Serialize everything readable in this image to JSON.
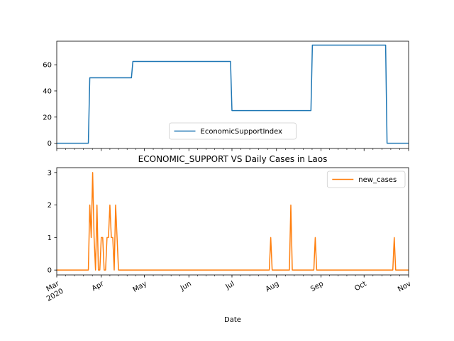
{
  "chart_data": [
    {
      "type": "line",
      "title": "",
      "xlabel": "",
      "ylabel": "",
      "x_range": [
        "2020-03-01",
        "2020-11-01"
      ],
      "ylim": [
        -4,
        78
      ],
      "yticks": [
        0,
        20,
        40,
        60
      ],
      "grid": false,
      "legend_position": "lower center",
      "series": [
        {
          "name": "EconomicSupportIndex",
          "color": "#1f77b4",
          "x": [
            "2020-03-01",
            "2020-03-23",
            "2020-03-24",
            "2020-04-22",
            "2020-04-23",
            "2020-06-30",
            "2020-07-01",
            "2020-08-25",
            "2020-08-26",
            "2020-10-16",
            "2020-10-17",
            "2020-11-01"
          ],
          "values": [
            0,
            0,
            50,
            50,
            62.5,
            62.5,
            25,
            25,
            75,
            75,
            0,
            0
          ]
        }
      ]
    },
    {
      "type": "line",
      "title": "ECONOMIC_SUPPORT VS Daily Cases in Laos",
      "xlabel": "Date",
      "ylabel": "",
      "x_range": [
        "2020-03-01",
        "2020-11-01"
      ],
      "xtick_labels": [
        "Mar\n2020",
        "Apr",
        "May",
        "Jun",
        "Jul",
        "Aug",
        "Sep",
        "Oct",
        "Nov"
      ],
      "ylim": [
        -0.15,
        3.15
      ],
      "yticks": [
        0,
        1,
        2,
        3
      ],
      "grid": false,
      "legend_position": "upper right",
      "series": [
        {
          "name": "new_cases",
          "color": "#ff7f0e",
          "x": [
            "2020-03-01",
            "2020-03-23",
            "2020-03-24",
            "2020-03-25",
            "2020-03-26",
            "2020-03-27",
            "2020-03-28",
            "2020-03-29",
            "2020-03-30",
            "2020-03-31",
            "2020-04-01",
            "2020-04-02",
            "2020-04-03",
            "2020-04-04",
            "2020-04-05",
            "2020-04-06",
            "2020-04-07",
            "2020-04-08",
            "2020-04-09",
            "2020-04-10",
            "2020-04-11",
            "2020-04-12",
            "2020-04-13",
            "2020-04-14",
            "2020-07-27",
            "2020-07-28",
            "2020-07-29",
            "2020-08-10",
            "2020-08-11",
            "2020-08-12",
            "2020-08-27",
            "2020-08-28",
            "2020-08-29",
            "2020-10-21",
            "2020-10-22",
            "2020-10-23",
            "2020-11-01"
          ],
          "values": [
            0,
            0,
            2,
            1,
            3,
            1,
            0,
            2,
            0,
            0,
            1,
            1,
            0,
            0,
            1,
            1,
            2,
            1,
            1,
            0,
            2,
            1,
            0,
            0,
            0,
            1,
            0,
            0,
            2,
            0,
            0,
            1,
            0,
            0,
            1,
            0,
            0
          ]
        }
      ]
    }
  ]
}
